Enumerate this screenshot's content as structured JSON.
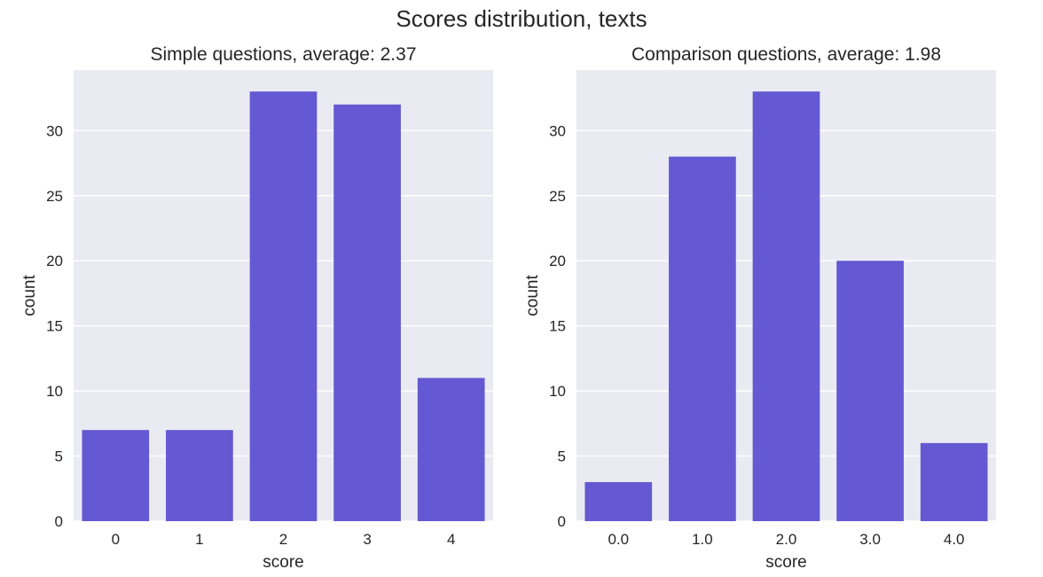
{
  "figure": {
    "suptitle": "Scores distribution, texts"
  },
  "colors": {
    "bar": "#6459d2",
    "plot_bg": "#eaeaf2",
    "grid": "#ffffff"
  },
  "chart_data": [
    {
      "type": "bar",
      "title": "Simple questions, average: 2.37",
      "xlabel": "score",
      "ylabel": "count",
      "categories": [
        "0",
        "1",
        "2",
        "3",
        "4"
      ],
      "values": [
        7,
        7,
        33,
        32,
        11
      ],
      "yticks": [
        0,
        5,
        10,
        15,
        20,
        25,
        30
      ],
      "ylim": [
        0,
        34.65
      ],
      "grid": true
    },
    {
      "type": "bar",
      "title": "Comparison questions, average: 1.98",
      "xlabel": "score",
      "ylabel": "count",
      "categories": [
        "0.0",
        "1.0",
        "2.0",
        "3.0",
        "4.0"
      ],
      "values": [
        3,
        28,
        33,
        20,
        6
      ],
      "yticks": [
        0,
        5,
        10,
        15,
        20,
        25,
        30
      ],
      "ylim": [
        0,
        34.65
      ],
      "grid": true
    }
  ]
}
